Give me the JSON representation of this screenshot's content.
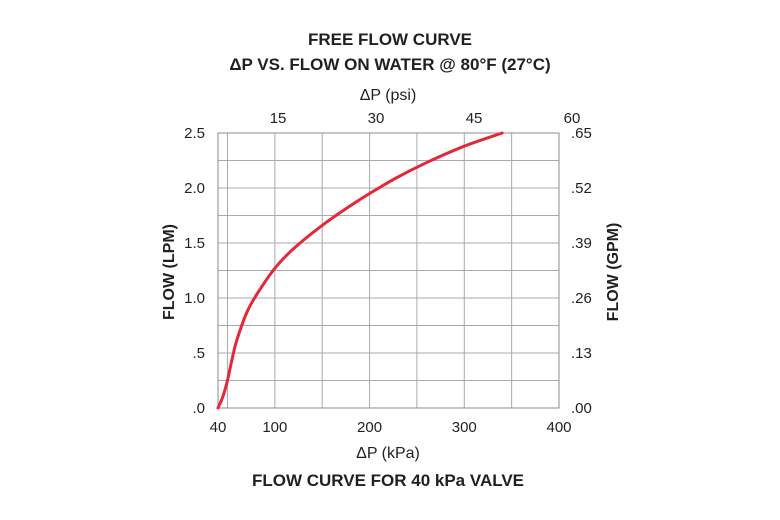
{
  "chart_data": {
    "type": "line",
    "title": "FREE FLOW CURVE",
    "subtitle": "ΔP VS. FLOW ON WATER @ 80°F (27°C)",
    "caption": "FLOW CURVE FOR 40 kPa VALVE",
    "xlabel": "ΔP (kPa)",
    "x2label": "ΔP (psi)",
    "ylabel": "FLOW (LPM)",
    "y2label": "FLOW (GPM)",
    "xlim": [
      40,
      400
    ],
    "ylim": [
      0,
      2.5
    ],
    "x_ticks": [
      {
        "value": 40,
        "label": "40"
      },
      {
        "value": 100,
        "label": "100"
      },
      {
        "value": 200,
        "label": "200"
      },
      {
        "value": 300,
        "label": "300"
      },
      {
        "value": 400,
        "label": "400"
      }
    ],
    "x2_ticks": [
      {
        "value": 103.4,
        "label": "15"
      },
      {
        "value": 206.8,
        "label": "30"
      },
      {
        "value": 310.3,
        "label": "45"
      },
      {
        "value": 413.7,
        "label": "60"
      }
    ],
    "y_ticks": [
      {
        "value": 0,
        "label": ".0"
      },
      {
        "value": 0.5,
        "label": ".5"
      },
      {
        "value": 1.0,
        "label": "1.0"
      },
      {
        "value": 1.5,
        "label": "1.5"
      },
      {
        "value": 2.0,
        "label": "2.0"
      },
      {
        "value": 2.5,
        "label": "2.5"
      }
    ],
    "y2_ticks": [
      {
        "value": 0,
        "label": ".00"
      },
      {
        "value": 0.5,
        "label": ".13"
      },
      {
        "value": 1.0,
        "label": ".26"
      },
      {
        "value": 1.5,
        "label": ".39"
      },
      {
        "value": 2.0,
        "label": ".52"
      },
      {
        "value": 2.5,
        "label": ".65"
      }
    ],
    "grid": true,
    "series": [
      {
        "color": "#e3283a",
        "x": [
          40,
          45,
          50,
          55,
          60,
          70,
          80,
          100,
          120,
          150,
          180,
          200,
          230,
          260,
          300,
          340
        ],
        "y": [
          0,
          0.1,
          0.25,
          0.45,
          0.62,
          0.86,
          1.02,
          1.27,
          1.45,
          1.66,
          1.84,
          1.95,
          2.1,
          2.23,
          2.38,
          2.5
        ]
      }
    ]
  }
}
